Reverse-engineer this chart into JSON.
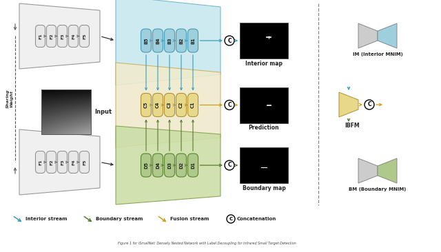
{
  "bg_color": "#ffffff",
  "interior_color": "#9dcfdc",
  "boundary_color": "#afc98a",
  "fusion_color": "#e8d98a",
  "fusion_bg": "#f0eacc",
  "interior_bg": "#c8e8f0",
  "boundary_bg": "#ccdea8",
  "gray_light": "#e8e8e8",
  "gray_dark": "#cccccc",
  "arrow_interior": "#3a9cb8",
  "arrow_boundary": "#5a7830",
  "arrow_fusion": "#c8a020",
  "encoder_labels": [
    "F1",
    "F2",
    "F3",
    "F4",
    "F5"
  ],
  "interior_labels": [
    "B5",
    "B4",
    "B3",
    "B2",
    "B1"
  ],
  "fusion_labels": [
    "C5",
    "C4",
    "C3",
    "C2",
    "C1"
  ],
  "boundary_labels": [
    "D5",
    "D4",
    "D3",
    "D2",
    "D1"
  ],
  "output_labels": [
    "Interior map",
    "Prediction",
    "Boundary map"
  ],
  "right_labels": [
    "IM (Interior MNIM)",
    "IBFM",
    "BM (Boundary MNIM)"
  ]
}
